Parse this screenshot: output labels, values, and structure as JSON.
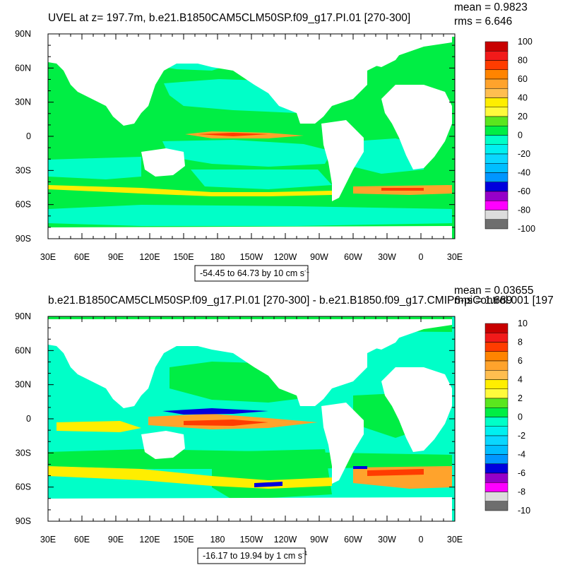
{
  "colors": {
    "ocean_bg": "#00ee44",
    "land": "#ffffff",
    "band_pos": "#ffa500",
    "band_neg": "#00e6ff",
    "band_strong": "#ff3000",
    "band_deep": "#0000dd"
  },
  "chart_data": [
    {
      "type": "heatmap",
      "title": "UVEL at z= 197.7m, b.e21.B1850CAM5CLM50SP.f09_g17.PI.01 [270-300]",
      "stats": {
        "mean": "mean = 0.9823",
        "rms": "rms = 6.646"
      },
      "range_label": "-54.45 to 64.73 by 10 cm s",
      "range_sup": "-1",
      "x_ticks": [
        "30E",
        "60E",
        "90E",
        "120E",
        "150E",
        "180",
        "150W",
        "120W",
        "90W",
        "60W",
        "30W",
        "0",
        "30E"
      ],
      "y_ticks": [
        "90N",
        "60N",
        "30N",
        "0",
        "30S",
        "60S",
        "90S"
      ],
      "colorbar": {
        "labels": [
          "100",
          "80",
          "60",
          "40",
          "20",
          "0",
          "-20",
          "-40",
          "-60",
          "-80",
          "-100"
        ],
        "colors": [
          "#c80000",
          "#f21a1a",
          "#ff3c00",
          "#ff8400",
          "#ffa32c",
          "#ffbe50",
          "#ffee00",
          "#fffa3c",
          "#5ae61e",
          "#00ee44",
          "#00ffc8",
          "#00f0f0",
          "#0ad7ff",
          "#00beff",
          "#0096ff",
          "#0000dd",
          "#9600c8",
          "#ff00ff",
          "#dcdcdc",
          "#6e6e6e"
        ]
      }
    },
    {
      "type": "heatmap",
      "title": "b.e21.B1850CAM5CLM50SP.f09_g17.PI.01 [270-300] - b.e21.B1850.f09_g17.CMIP6-piControl.001 [197",
      "stats": {
        "mean": "mean = 0.03655",
        "rms": "rms = 1.689"
      },
      "range_label": "-16.17 to 19.94 by 1 cm s",
      "range_sup": "-1",
      "x_ticks": [
        "30E",
        "60E",
        "90E",
        "120E",
        "150E",
        "180",
        "150W",
        "120W",
        "90W",
        "60W",
        "30W",
        "0",
        "30E"
      ],
      "y_ticks": [
        "90N",
        "60N",
        "30N",
        "0",
        "30S",
        "60S",
        "90S"
      ],
      "colorbar": {
        "labels": [
          "10",
          "8",
          "6",
          "4",
          "2",
          "0",
          "-2",
          "-4",
          "-6",
          "-8",
          "-10"
        ],
        "colors": [
          "#c80000",
          "#f21a1a",
          "#ff3c00",
          "#ff8400",
          "#ffa32c",
          "#ffbe50",
          "#ffee00",
          "#fffa3c",
          "#5ae61e",
          "#00ee44",
          "#00ffc8",
          "#00f0f0",
          "#0ad7ff",
          "#00beff",
          "#0096ff",
          "#0000dd",
          "#9600c8",
          "#ff00ff",
          "#dcdcdc",
          "#6e6e6e"
        ]
      }
    }
  ]
}
